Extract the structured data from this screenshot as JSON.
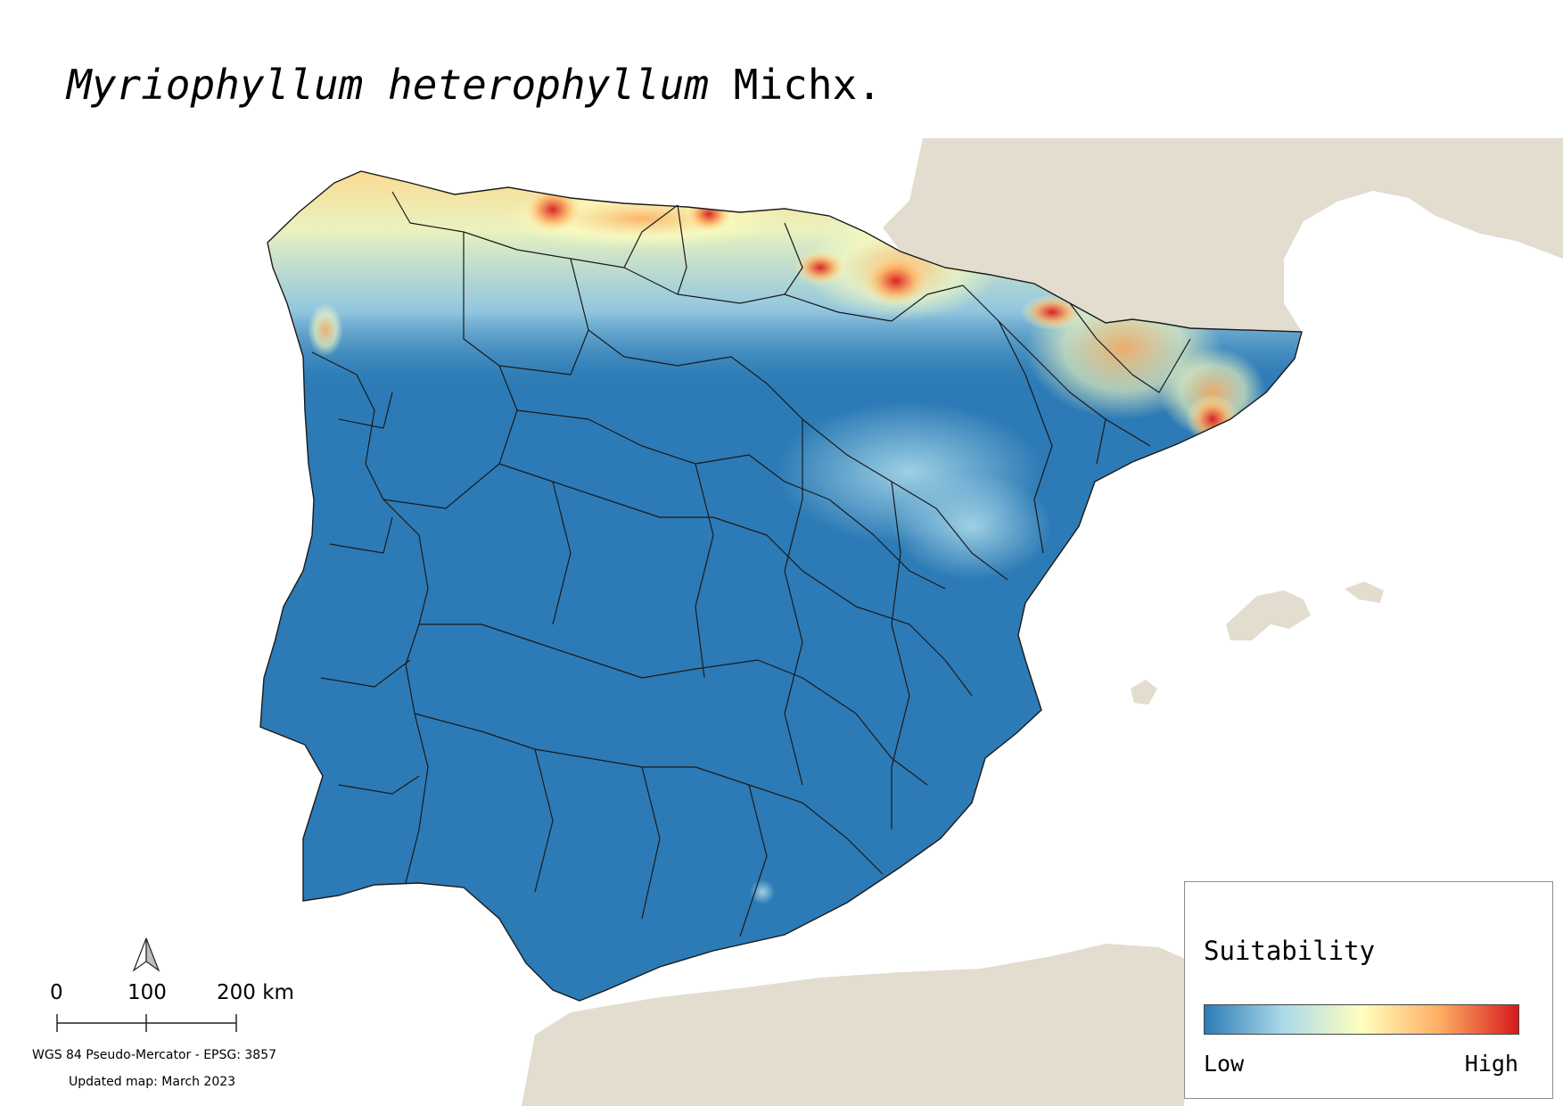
{
  "map": {
    "title_italic": "Myriophyllum heterophyllum",
    "title_author": "Michx.",
    "colors": {
      "background": "#ffffff",
      "land_outside": "#e2ddcf",
      "borders": "#1a1a1a",
      "suitability_ramp": [
        "#2c7bb6",
        "#abd9e9",
        "#ffffbf",
        "#fdae61",
        "#d7191c"
      ]
    },
    "legend": {
      "title": "Suitability",
      "low_label": "Low",
      "high_label": "High"
    },
    "scale_bar": {
      "labels": [
        "0",
        "100",
        "200 km"
      ],
      "unit": "km"
    },
    "north_arrow_icon": "north-arrow-icon",
    "crs_text": "WGS 84 Pseudo-Mercator  - EPSG: 3857",
    "updated_text": "Updated map: March 2023"
  }
}
